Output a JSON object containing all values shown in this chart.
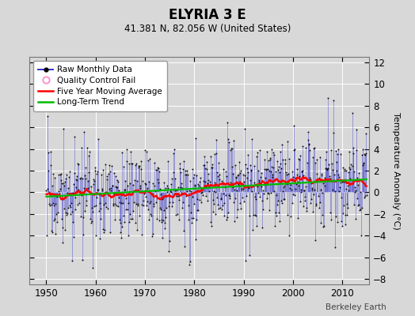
{
  "title": "ELYRIA 3 E",
  "subtitle": "41.381 N, 82.056 W (United States)",
  "ylabel": "Temperature Anomaly (°C)",
  "watermark": "Berkeley Earth",
  "xlim": [
    1946.5,
    2015.5
  ],
  "ylim": [
    -8.5,
    12.5
  ],
  "yticks": [
    -8,
    -6,
    -4,
    -2,
    0,
    2,
    4,
    6,
    8,
    10,
    12
  ],
  "xticks": [
    1950,
    1960,
    1970,
    1980,
    1990,
    2000,
    2010
  ],
  "raw_color": "#3333cc",
  "raw_alpha": 0.55,
  "dot_color": "#111111",
  "ma_color": "#ff0000",
  "trend_color": "#00bb00",
  "bg_color": "#d8d8d8",
  "plot_bg": "#d8d8d8",
  "seed": 17,
  "n_years": 65,
  "start_year": 1950
}
